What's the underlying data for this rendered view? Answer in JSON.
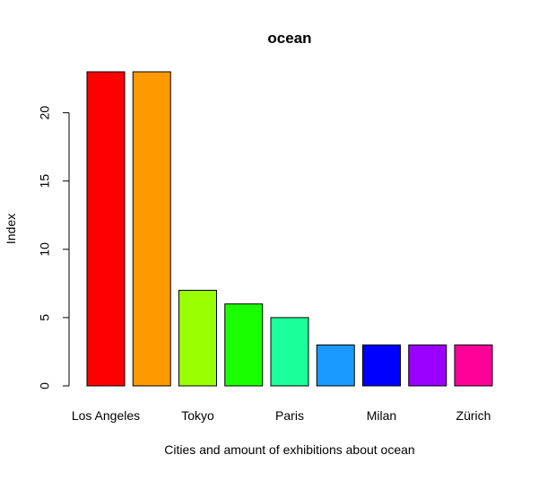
{
  "chart_data": {
    "type": "bar",
    "title": "ocean",
    "xlabel": "Cities and amount of exhibitions about ocean",
    "ylabel": "Index",
    "categories": [
      "Los Angeles",
      "",
      "Tokyo",
      "",
      "Paris",
      "",
      "Milan",
      "",
      "Zürich"
    ],
    "values": [
      23,
      23,
      7,
      6,
      5,
      3,
      3,
      3,
      3
    ],
    "colors": [
      "#FF0000",
      "#FF9900",
      "#99FF00",
      "#1AFF00",
      "#1AFF99",
      "#1A99FF",
      "#0000FF",
      "#9900FF",
      "#FF0099"
    ],
    "ylim": [
      0,
      23
    ],
    "yticks": [
      0,
      5,
      10,
      15,
      20
    ],
    "grid": false,
    "legend": "none"
  }
}
